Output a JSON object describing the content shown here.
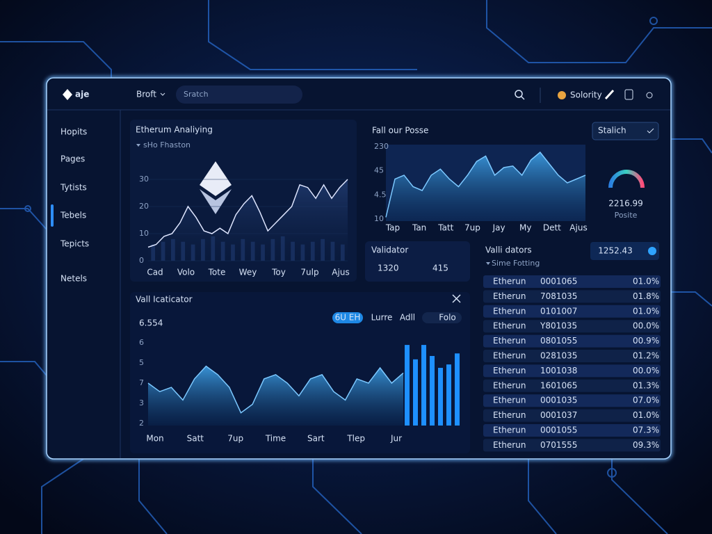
{
  "topbar": {
    "logo": "aje",
    "menu": "Broft",
    "search": "Sratch",
    "user": "Solority"
  },
  "sidebar": [
    "Hopits",
    "Pages",
    "Tytists",
    "Tebels",
    "Tepicts",
    "Netels"
  ],
  "chart1": {
    "type": "line",
    "title": "Etherum Analiying",
    "subtitle": "sHo Fhaston",
    "ylim": [
      0,
      30
    ],
    "yticks": [
      30,
      20,
      10,
      0
    ],
    "categories": [
      "Cad",
      "Volo",
      "Tote",
      "Wey",
      "Toy",
      "7ulp",
      "Ajus"
    ],
    "values": [
      5,
      6,
      9,
      10,
      14,
      20,
      16,
      11,
      10,
      12,
      10,
      17,
      21,
      24,
      18,
      11,
      14,
      17,
      20,
      28,
      27,
      23,
      28,
      23,
      27,
      30
    ],
    "bar_values": [
      6,
      7,
      8,
      7,
      6,
      8,
      9,
      7,
      6,
      8,
      7,
      6,
      8,
      9,
      7,
      6,
      7,
      8,
      7,
      6
    ]
  },
  "chart2": {
    "type": "area",
    "title": "Fall our Posse",
    "y_labels": [
      "230",
      "45",
      "4.5",
      "10"
    ],
    "categories": [
      "Tap",
      "Tan",
      "Tatt",
      "7up",
      "Jay",
      "My",
      "Dett",
      "Ajus"
    ],
    "ylim": [
      0,
      100
    ],
    "values": [
      5,
      55,
      60,
      45,
      40,
      60,
      68,
      55,
      45,
      60,
      78,
      85,
      60,
      70,
      72,
      60,
      80,
      90,
      75,
      60,
      50,
      55,
      60
    ]
  },
  "dropdown": "Stalich",
  "gauge": {
    "value": "2216.99",
    "label": "Posite"
  },
  "validator": {
    "title": "Validator",
    "left": "1320",
    "right": "415"
  },
  "validators": {
    "title": "Valli dators",
    "subtitle": "Sime Fotting",
    "badge": "1252.43",
    "rows": [
      [
        "Etherun",
        "0001065",
        "01.0%"
      ],
      [
        "Etherun",
        "7081035",
        "01.8%"
      ],
      [
        "Etherun",
        "0101007",
        "01.0%"
      ],
      [
        "Etherun",
        "Y801035",
        "00.0%"
      ],
      [
        "Etherun",
        "0801055",
        "00.9%"
      ],
      [
        "Etherun",
        "0281035",
        "01.2%"
      ],
      [
        "Etherun",
        "1001038",
        "00.0%"
      ],
      [
        "Etherun",
        "1601065",
        "01.3%"
      ],
      [
        "Etherun",
        "0001035",
        "07.0%"
      ],
      [
        "Etherun",
        "0001037",
        "01.0%"
      ],
      [
        "Etherun",
        "0001055",
        "07.3%"
      ],
      [
        "Etherun",
        "0701555",
        "09.3%"
      ]
    ]
  },
  "chart3": {
    "type": "area",
    "title": "Vall Icaticator",
    "value": "6.554",
    "buttons": [
      "6U EH",
      "Lurre",
      "Adll",
      "Folo"
    ],
    "y_labels": [
      "6",
      "5",
      "7",
      "3",
      "2"
    ],
    "categories": [
      "Mon",
      "Satt",
      "7up",
      "Time",
      "Sart",
      "Tlep",
      "Jur"
    ],
    "ylim": [
      0,
      100
    ],
    "values": [
      50,
      40,
      45,
      30,
      55,
      70,
      60,
      45,
      15,
      25,
      55,
      60,
      50,
      35,
      55,
      60,
      40,
      30,
      55,
      50,
      68,
      50,
      62
    ],
    "bar_values": [
      95,
      78,
      95,
      82,
      68,
      72,
      85
    ]
  }
}
